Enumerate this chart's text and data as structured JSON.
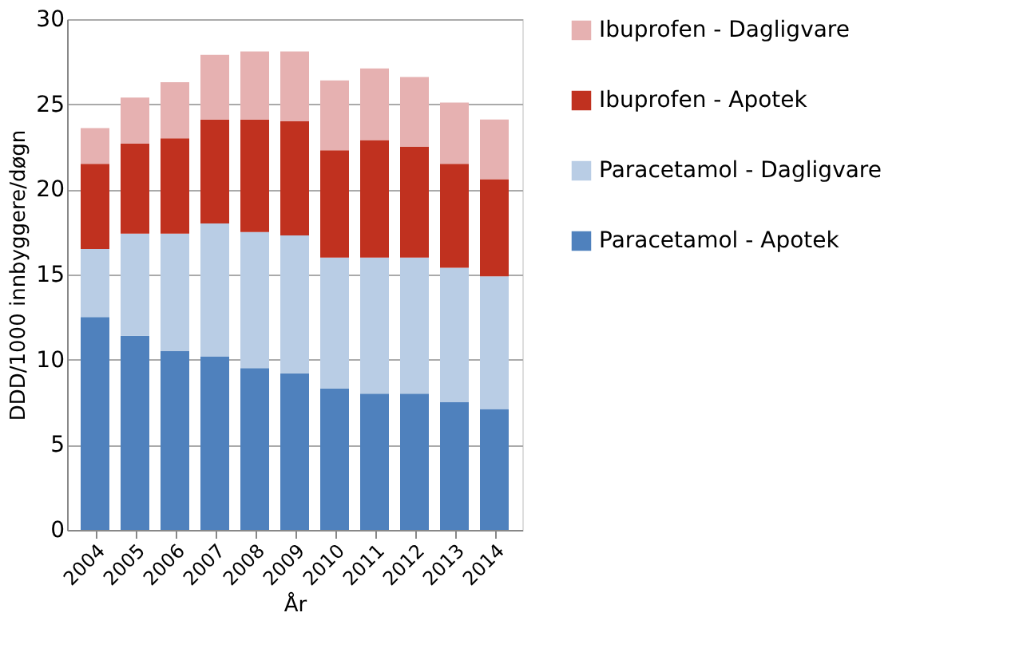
{
  "chart_data": {
    "type": "bar",
    "stacked": true,
    "xlabel": "År",
    "ylabel": "DDD/1000 innbyggere/døgn",
    "categories": [
      "2004",
      "2005",
      "2006",
      "2007",
      "2008",
      "2009",
      "2010",
      "2011",
      "2012",
      "2013",
      "2014"
    ],
    "series": [
      {
        "name": "Paracetamol - Apotek",
        "color": "#4f81bd",
        "values": [
          12.5,
          11.4,
          10.5,
          10.2,
          9.5,
          9.2,
          8.3,
          8.0,
          8.0,
          7.5,
          7.1
        ]
      },
      {
        "name": "Paracetamol - Dagligvare",
        "color": "#b9cde5",
        "values": [
          4.0,
          6.0,
          6.9,
          7.8,
          8.0,
          8.1,
          7.7,
          8.0,
          8.0,
          7.9,
          7.8
        ]
      },
      {
        "name": "Ibuprofen - Apotek",
        "color": "#c0311f",
        "values": [
          5.0,
          5.3,
          5.6,
          6.1,
          6.6,
          6.7,
          6.3,
          6.9,
          6.5,
          6.1,
          5.7
        ]
      },
      {
        "name": "Ibuprofen - Dagligvare",
        "color": "#e6b1b1",
        "values": [
          2.1,
          2.7,
          3.3,
          3.8,
          4.0,
          4.1,
          4.1,
          4.2,
          4.1,
          3.6,
          3.5
        ]
      }
    ],
    "ylim": [
      0,
      30
    ],
    "yticks": [
      0,
      5,
      10,
      15,
      20,
      25,
      30
    ],
    "grid": "y",
    "legend": "right"
  }
}
